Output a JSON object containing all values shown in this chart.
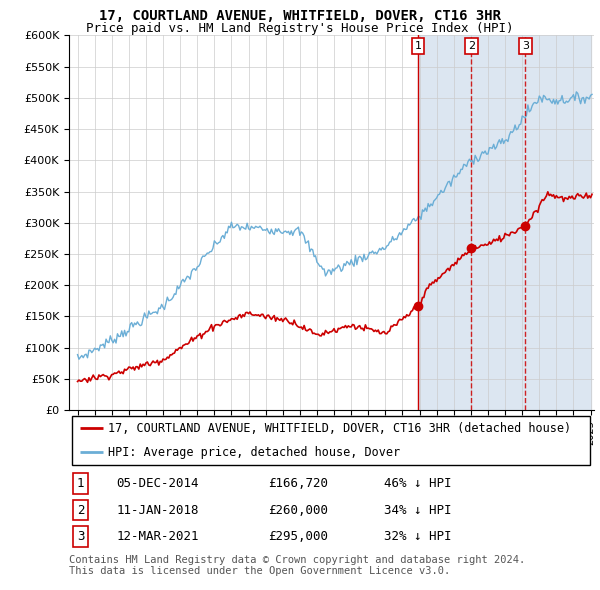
{
  "title": "17, COURTLAND AVENUE, WHITFIELD, DOVER, CT16 3HR",
  "subtitle": "Price paid vs. HM Land Registry's House Price Index (HPI)",
  "ylim": [
    0,
    600000
  ],
  "yticks": [
    0,
    50000,
    100000,
    150000,
    200000,
    250000,
    300000,
    350000,
    400000,
    450000,
    500000,
    550000,
    600000
  ],
  "ytick_labels": [
    "£0",
    "£50K",
    "£100K",
    "£150K",
    "£200K",
    "£250K",
    "£300K",
    "£350K",
    "£400K",
    "£450K",
    "£500K",
    "£550K",
    "£600K"
  ],
  "hpi_color": "#6baed6",
  "price_color": "#cc0000",
  "shaded_region_color": "#dce6f1",
  "transactions": [
    {
      "label": "1",
      "date_num": 2014.92,
      "price": 166720,
      "pct": "46% ↓ HPI",
      "date_str": "05-DEC-2014"
    },
    {
      "label": "2",
      "date_num": 2018.03,
      "price": 260000,
      "pct": "34% ↓ HPI",
      "date_str": "11-JAN-2018"
    },
    {
      "label": "3",
      "date_num": 2021.19,
      "price": 295000,
      "pct": "32% ↓ HPI",
      "date_str": "12-MAR-2021"
    }
  ],
  "legend_property_label": "17, COURTLAND AVENUE, WHITFIELD, DOVER, CT16 3HR (detached house)",
  "legend_hpi_label": "HPI: Average price, detached house, Dover",
  "footer": "Contains HM Land Registry data © Crown copyright and database right 2024.\nThis data is licensed under the Open Government Licence v3.0.",
  "title_fontsize": 10,
  "subtitle_fontsize": 9,
  "tick_fontsize": 8,
  "legend_fontsize": 8.5,
  "table_fontsize": 9
}
